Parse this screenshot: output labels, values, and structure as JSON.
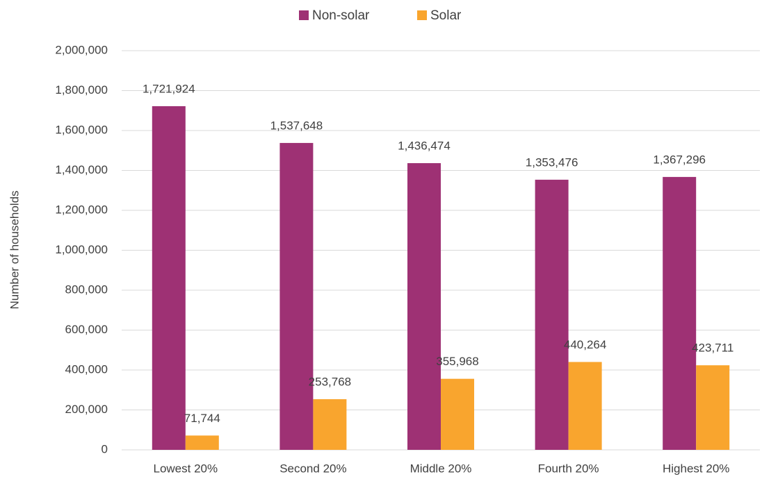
{
  "chart_data": {
    "type": "bar",
    "y_label": "Number of households",
    "categories": [
      "Lowest 20%",
      "Second 20%",
      "Middle 20%",
      "Fourth 20%",
      "Highest 20%"
    ],
    "series": [
      {
        "name": "Non-solar",
        "color": "#9e3174",
        "values": [
          1721924,
          1537648,
          1436474,
          1353476,
          1367296
        ],
        "value_labels": [
          "1,721,924",
          "1,537,648",
          "1,436,474",
          "1,353,476",
          "1,367,296"
        ]
      },
      {
        "name": "Solar",
        "color": "#f9a52e",
        "values": [
          71744,
          253768,
          355968,
          440264,
          423711
        ],
        "value_labels": [
          "71,744",
          "253,768",
          "355,968",
          "440,264",
          "423,711"
        ]
      }
    ],
    "ylim": [
      0,
      2000000
    ],
    "yticks": [
      0,
      {
        "value": 200000,
        "label": "200,000"
      },
      {
        "value": 400000,
        "label": "400,000"
      },
      {
        "value": 600000,
        "label": "600,000"
      },
      {
        "value": 800000,
        "label": "800,000"
      },
      {
        "value": 1000000,
        "label": "1,000,000"
      },
      {
        "value": 1200000,
        "label": "1,200,000"
      },
      {
        "value": 1400000,
        "label": "1,400,000"
      },
      {
        "value": 1600000,
        "label": "1,600,000"
      },
      {
        "value": 1800000,
        "label": "1,800,000"
      },
      {
        "value": 2000000,
        "label": "2,000,000"
      }
    ],
    "grid": true,
    "legend": "top"
  }
}
